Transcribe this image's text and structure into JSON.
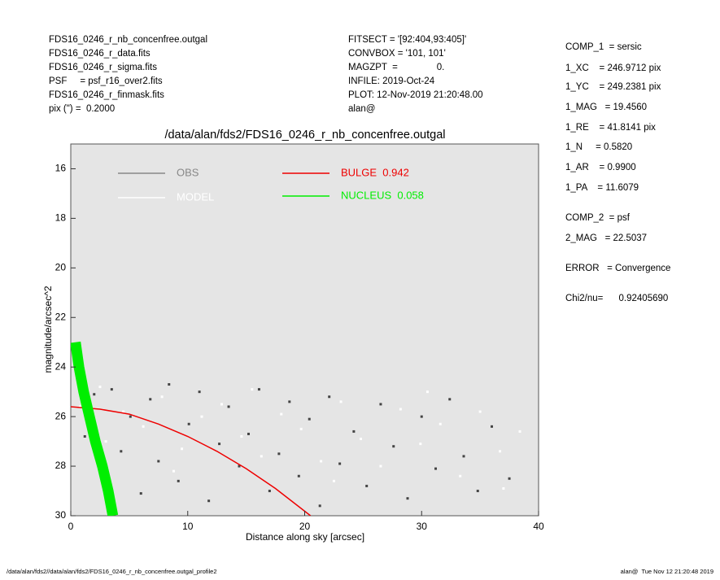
{
  "header": {
    "left": [
      "FDS16_0246_r_nb_concenfree.outgal",
      "FDS16_0246_r_data.fits",
      "FDS16_0246_r_sigma.fits",
      "PSF     = psf_r16_over2.fits",
      "FDS16_0246_r_finmask.fits",
      "pix (\") =  0.2000"
    ],
    "middle": [
      "FITSECT = '[92:404,93:405]'",
      "CONVBOX = '101, 101'",
      "MAGZPT  =               0.",
      "INFILE: 2019-Oct-24",
      "PLOT: 12-Nov-2019 21:20:48.00",
      "alan@"
    ]
  },
  "panel": [
    "COMP_1  = sersic",
    "1_XC    = 246.9712 pix",
    "1_YC    = 249.2381 pix",
    "1_MAG   = 19.4560",
    "1_RE    = 41.8141 pix",
    "1_N     = 0.5820",
    "1_AR    = 0.9900",
    "1_PA    = 11.6079",
    "COMP_2  = psf",
    "2_MAG   = 22.5037",
    "ERROR   = Convergence",
    "Chi2/nu=      0.92405690"
  ],
  "footer": {
    "left": "/data/alan/fds2//data/alan/fds2/FDS16_0246_r_nb_concenfree.outgal_profile2",
    "right": "alan@  Tue Nov 12 21:20:48 2019"
  },
  "chart_data": {
    "type": "scatter",
    "title": "/data/alan/fds2/FDS16_0246_r_nb_concenfree.outgal",
    "x_label": "Distance along sky [arcsec]",
    "y_label": "magnitude/arcsec^2",
    "xlim": [
      0,
      40
    ],
    "xticks": [
      0,
      10,
      20,
      30,
      40
    ],
    "ylim": [
      30,
      15
    ],
    "yticks": [
      16,
      18,
      20,
      22,
      24,
      26,
      28,
      30
    ],
    "background": "#e5e5e5",
    "series": [
      {
        "name": "OBS",
        "color": "#444444",
        "mode": "points",
        "x": [
          0.5,
          1.2,
          2.0,
          2.8,
          3.5,
          4.3,
          5.1,
          6.0,
          6.8,
          7.5,
          8.4,
          9.2,
          10.1,
          11.0,
          11.8,
          12.7,
          13.5,
          14.4,
          15.2,
          16.1,
          17.0,
          17.8,
          18.7,
          19.5,
          20.4,
          21.3,
          22.1,
          23.0,
          24.2,
          25.3,
          26.5,
          27.6,
          28.8,
          30.0,
          31.2,
          32.4,
          33.6,
          34.8,
          36.0,
          37.5
        ],
        "values": [
          24.2,
          26.8,
          25.1,
          28.3,
          24.9,
          27.4,
          26.0,
          29.1,
          25.3,
          27.8,
          24.7,
          28.6,
          26.3,
          25.0,
          29.4,
          27.1,
          25.6,
          28.0,
          26.7,
          24.9,
          29.0,
          27.5,
          25.4,
          28.4,
          26.1,
          29.6,
          25.2,
          27.9,
          26.6,
          28.8,
          25.5,
          27.2,
          29.3,
          26.0,
          28.1,
          25.3,
          27.6,
          29.0,
          26.4,
          28.5
        ]
      },
      {
        "name": "MODEL",
        "color": "#ffffff",
        "mode": "points",
        "x": [
          0.8,
          1.8,
          3.0,
          4.5,
          6.2,
          7.8,
          9.5,
          11.2,
          12.9,
          14.6,
          16.3,
          18.0,
          19.7,
          21.4,
          23.1,
          24.8,
          26.5,
          28.2,
          29.9,
          31.6,
          33.3,
          35.0,
          36.7,
          38.4,
          2.5,
          8.8,
          15.5,
          22.5,
          30.5,
          37.0
        ],
        "values": [
          25.6,
          26.1,
          27.0,
          25.8,
          26.4,
          25.2,
          27.3,
          26.0,
          25.5,
          26.8,
          27.6,
          25.9,
          26.5,
          27.8,
          25.4,
          26.9,
          28.0,
          25.7,
          27.1,
          26.3,
          28.4,
          25.8,
          27.4,
          26.6,
          24.8,
          28.2,
          24.9,
          28.6,
          25.0,
          28.9
        ]
      },
      {
        "name": "BULGE  0.942",
        "color": "#ee0000",
        "mode": "line",
        "x": [
          0,
          2.5,
          5,
          7.5,
          10,
          12.5,
          15,
          17.5,
          20.5
        ],
        "values": [
          25.6,
          25.7,
          25.9,
          26.3,
          26.8,
          27.4,
          28.1,
          28.9,
          30
        ]
      },
      {
        "name": "NUCLEUS  0.058",
        "color": "#00ee00",
        "mode": "band",
        "x": [
          0.4,
          0.7,
          1.1,
          1.6,
          2.1,
          2.7,
          3.2,
          3.6
        ],
        "values": [
          23,
          24,
          25,
          26,
          27,
          28,
          29,
          30
        ]
      }
    ]
  }
}
